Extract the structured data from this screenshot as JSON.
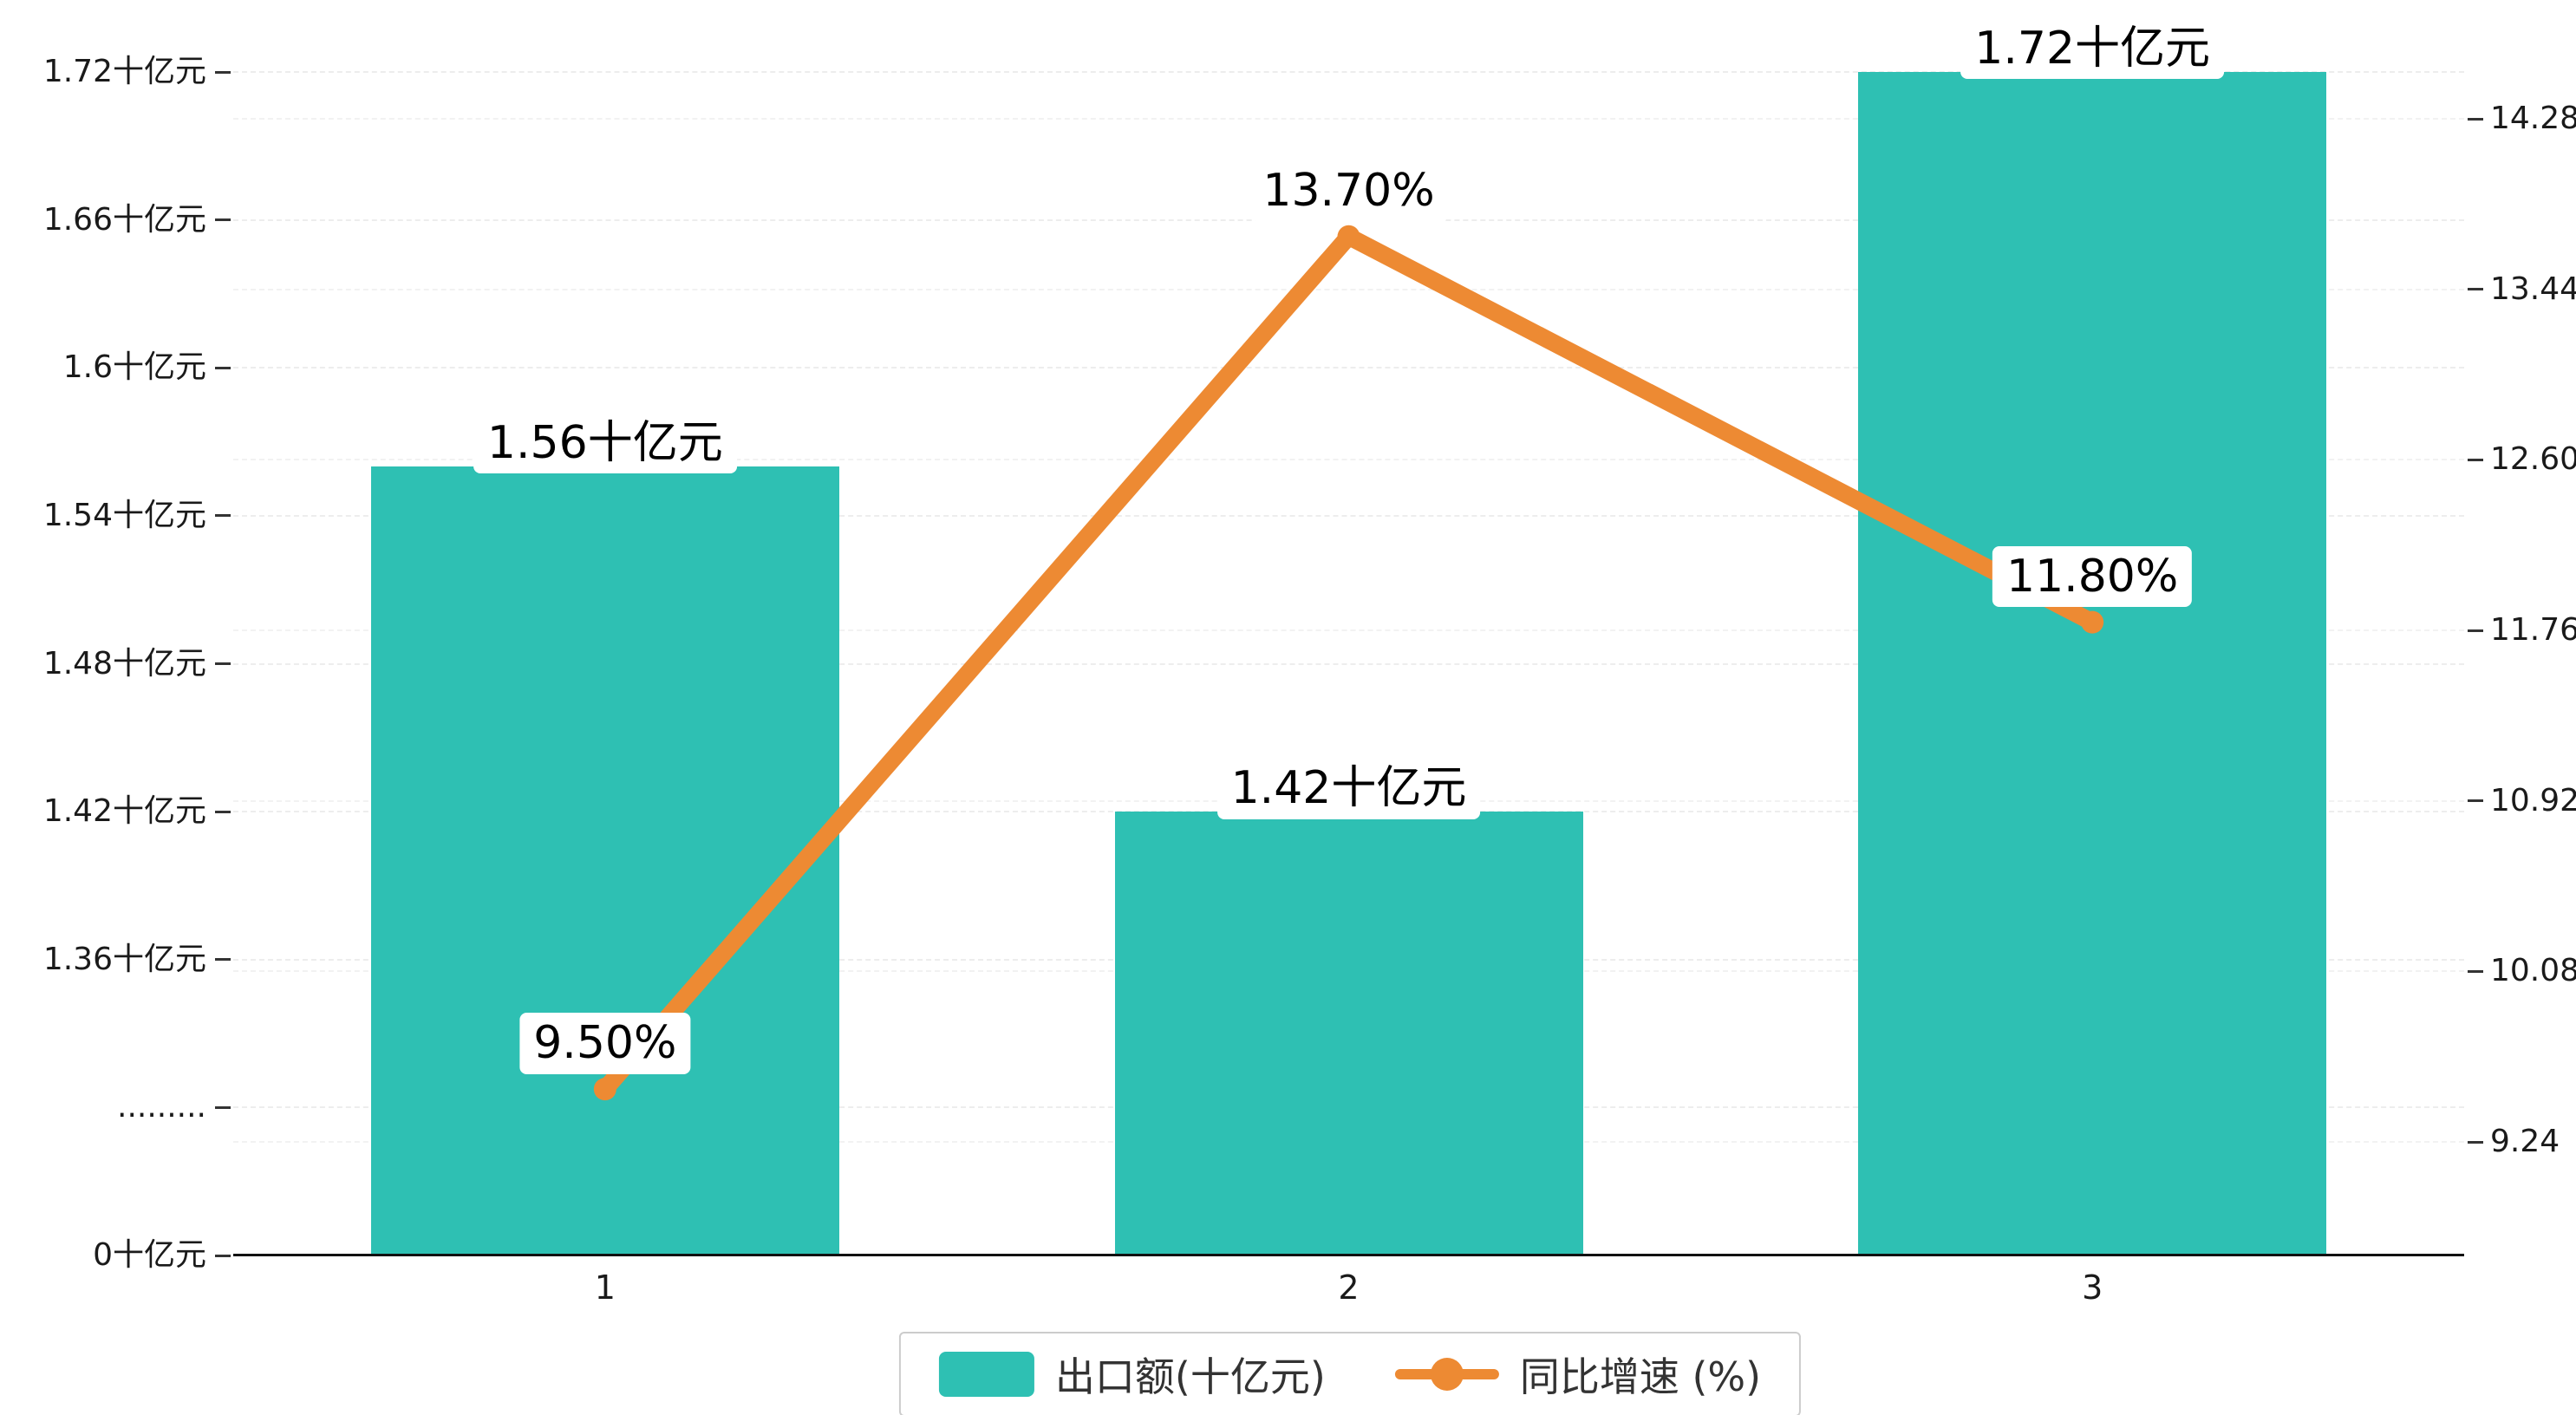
{
  "chart_data": {
    "type": "bar",
    "title": "",
    "categories": [
      "1",
      "2",
      "3"
    ],
    "series": [
      {
        "name": "出口额(十亿元)",
        "type": "bar",
        "color": "#2ec0b3",
        "values": [
          1.56,
          1.42,
          1.72
        ],
        "labels": [
          "1.56十亿元",
          "1.42十亿元",
          "1.72十亿元"
        ]
      },
      {
        "name": "同比增速 (%)",
        "type": "line",
        "color": "#ed8a33",
        "values": [
          9.5,
          13.7,
          11.8
        ],
        "labels": [
          "9.50%",
          "13.70%",
          "11.80%"
        ]
      }
    ],
    "left_axis": {
      "unit": "十亿元",
      "ticks_bottom_to_top": [
        "0十亿元",
        ".........",
        "1.36十亿元",
        "1.42十亿元",
        "1.48十亿元",
        "1.54十亿元",
        "1.6十亿元",
        "1.66十亿元",
        "1.72十亿元"
      ],
      "has_break": true,
      "break_start_value": 1.3,
      "tick_step": 0.06
    },
    "right_axis": {
      "ticks_bottom_to_top": [
        "9.24",
        "10.08",
        "10.92",
        "11.76",
        "12.60",
        "13.44",
        "14.28"
      ],
      "min": 9.24,
      "tick_step": 0.84
    },
    "legend": {
      "position": "bottom-center",
      "items": [
        {
          "label": "出口额(十亿元)",
          "marker": "rect"
        },
        {
          "label": "同比增速 (%)",
          "marker": "line"
        }
      ]
    },
    "grid": "dashed-horizontal"
  },
  "colors": {
    "bar": "#2ec0b3",
    "line": "#ed8a33",
    "background": "#ffffff",
    "grid_line": "#ededed",
    "grid_line_secondary": "#f2f2f2",
    "axis_line": "#111111",
    "text": "#1a1a1a",
    "label_bg": "#ffffff",
    "legend_border": "#cccccc"
  }
}
